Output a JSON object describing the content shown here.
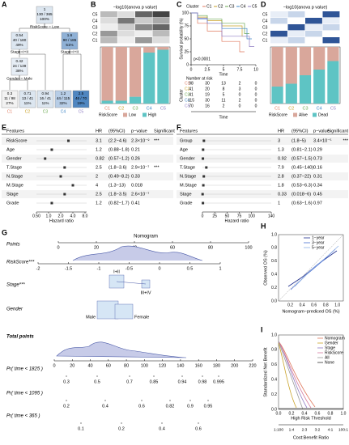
{
  "panel_labels": [
    "A",
    "B",
    "C",
    "D",
    "E",
    "F",
    "G",
    "H",
    "I"
  ],
  "tree": {
    "nodes": [
      {
        "lines": [
          "1",
          "130 / 365",
          "100%"
        ]
      },
      {
        "lines": [
          "0.54",
          "40 / 180",
          "49%"
        ]
      },
      {
        "lines": [
          "1.6",
          "90 / 185",
          "51%"
        ]
      },
      {
        "lines": [
          "0.42",
          "24 / 139",
          "38%"
        ]
      },
      {
        "lines": [
          "0.3",
          "11 / 98",
          "27%"
        ]
      },
      {
        "lines": [
          "0.71",
          "13 / 41",
          "11%"
        ]
      },
      {
        "lines": [
          "0.94",
          "16 / 41",
          "11%"
        ]
      },
      {
        "lines": [
          "1.2",
          "44 / 115",
          "32%"
        ]
      },
      {
        "lines": [
          "2.5",
          "46 / 70",
          "19%"
        ]
      }
    ],
    "splits": [
      "RiskScore = Low",
      "Stage=I+II",
      "Stage=I+II",
      "Gender = Male"
    ],
    "leaf_labels": [
      "C1",
      "C2",
      "C3",
      "C4",
      "C5"
    ]
  },
  "panel_b": {
    "title": "−log10(anova p value)",
    "rows": [
      "C5",
      "C4",
      "C3",
      "C2",
      "C1"
    ],
    "columns": [
      "C1",
      "C2",
      "C3",
      "C4",
      "C5"
    ],
    "legend_title": "RiskScore",
    "legend": [
      "Low",
      "High"
    ]
  },
  "panel_c": {
    "legend_title": "Cluster",
    "legend": [
      "C1",
      "C2",
      "C3",
      "C4",
      "C5"
    ],
    "y_label": "Survival probability (%)",
    "yticks": [
      "0",
      "25",
      "50",
      "75",
      "100"
    ],
    "xticks": [
      "0",
      "2.5",
      "5",
      "7.5",
      "10"
    ],
    "x_label": "Time",
    "p_value": "p<0.0001",
    "risk_title": "Number at risk",
    "risk_y_label": "Cluster",
    "risk_rows": [
      "C1",
      "C2",
      "C3",
      "C4",
      "C5"
    ],
    "risk_table": [
      [
        "98",
        "30",
        "13",
        "2",
        "0"
      ],
      [
        "41",
        "20",
        "8",
        "3",
        "0"
      ],
      [
        "41",
        "19",
        "5",
        "0",
        "0"
      ],
      [
        "115",
        "30",
        "11",
        "2",
        "0"
      ],
      [
        "70",
        "16",
        "2",
        "0",
        "0"
      ]
    ]
  },
  "panel_d": {
    "title": "−log10(anova p value)",
    "rows": [
      "C5",
      "C4",
      "C3",
      "C2",
      "C1"
    ],
    "columns": [
      "C1",
      "C2",
      "C3",
      "C4",
      "C5"
    ],
    "legend_title": "RiskScore",
    "legend": [
      "Alive",
      "Dead"
    ]
  },
  "panel_e": {
    "headers": [
      "Features",
      "HR",
      "(95%CI)",
      "p−value",
      "Significant"
    ],
    "rows": [
      [
        "RiskScore",
        "3.1",
        "(2.2−4.6)",
        "2.3×10⁻⁹",
        "***"
      ],
      [
        "Age",
        "1.2",
        "(0.88−1.8)",
        "0.21",
        ""
      ],
      [
        "Gender",
        "0.82",
        "(0.57−1.2)",
        "0.26",
        ""
      ],
      [
        "T.Stage",
        "2.5",
        "(1.8−3.6)",
        "2.9×10⁻⁷",
        "***"
      ],
      [
        "N.Stage",
        "2",
        "(0.49−8.2)",
        "0.33",
        ""
      ],
      [
        "M.Stage",
        "4",
        "(1.3−13)",
        "0.018",
        ""
      ],
      [
        "Stage",
        "2.5",
        "(1.8−3.5)",
        "2.6×10⁻⁷",
        ""
      ],
      [
        "Grade",
        "1.2",
        "(0.82−1.7)",
        "0.41",
        ""
      ]
    ],
    "xticks": [
      "0.50",
      "1.0",
      "2.0",
      "4.0",
      "8.0"
    ],
    "x_label": "Hazard ratio"
  },
  "panel_f": {
    "headers": [
      "Features",
      "HR",
      "(95%CI)",
      "p−value",
      "Significant"
    ],
    "rows": [
      [
        "Group",
        "3",
        "(1.8−5)",
        "3.4×10⁻⁵",
        "***"
      ],
      [
        "Age",
        "1.3",
        "(0.81−2.1)",
        "0.29",
        ""
      ],
      [
        "Gender",
        "0.92",
        "(0.57−1.5)",
        "0.73",
        ""
      ],
      [
        "T.Stage",
        "7.9",
        "(0.45−140)",
        "0.16",
        ""
      ],
      [
        "N.Stage",
        "2.8",
        "(0.37−22)",
        "0.31",
        ""
      ],
      [
        "M.Stage",
        "1.8",
        "(0.53−6.3)",
        "0.34",
        ""
      ],
      [
        "Stage",
        "0.33",
        "(0.018−6)",
        "0.45",
        ""
      ],
      [
        "Grade",
        "1",
        "(0.63−1.6)",
        "0.97",
        ""
      ]
    ],
    "xticks": [
      "0",
      "25",
      "50",
      "75",
      "100",
      "140"
    ],
    "x_label": "Hazard ratio"
  },
  "panel_g": {
    "title": "Nomogram",
    "row_labels": [
      "Points",
      "RiskScore***",
      "Stage***",
      "Gender",
      "Total points",
      "Pr( time < 1825 )",
      "Pr( time < 1095 )",
      "Pr( time < 365 )"
    ],
    "points_ticks": [
      "0",
      "20",
      "40",
      "60",
      "80",
      "100"
    ],
    "riskscore_ticks": [
      "-2",
      "-1.5",
      "-1",
      "-0.5",
      "0",
      "0.5",
      "1"
    ],
    "stage_levels": [
      "I+II",
      "III+IV"
    ],
    "gender_levels": [
      "Male",
      "Female"
    ],
    "total_ticks": [
      "0",
      "20",
      "40",
      "60",
      "80",
      "100",
      "120",
      "140",
      "160",
      "180",
      "200",
      "220"
    ],
    "pr1825_ticks": [
      "0.3",
      "0.5",
      "0.7",
      "0.85",
      "0.94",
      "0.98",
      "0.995"
    ],
    "pr1095_ticks": [
      "0.2",
      "0.4",
      "0.6",
      "0.82",
      "0.9",
      "0.95"
    ],
    "pr365_ticks": [
      "0.1",
      "0.2",
      "0.4",
      "0.6"
    ]
  },
  "panel_h": {
    "legend": [
      "1−year",
      "3−year",
      "5−year"
    ],
    "y_label": "Observed OS (%)",
    "x_label": "Nomogram−prediced OS (%)",
    "xticks": [
      "0.2",
      "0.4",
      "0.6",
      "0.8",
      "1.0"
    ],
    "yticks": [
      "0.0",
      "0.2",
      "0.4",
      "0.6",
      "0.8",
      "1.0"
    ]
  },
  "panel_i": {
    "legend": [
      "Nomogram",
      "Gender",
      "Stage",
      "RiskScore",
      "All",
      "None"
    ],
    "y_label": "Standardized Net Benefit",
    "x_label": "High Risk Threshold",
    "x2_label": "Cost:Benefit Ratio",
    "xticks": [
      "0.0",
      "0.2",
      "0.4",
      "0.6",
      "0.8",
      "1.0"
    ],
    "yticks": [
      "0.0",
      "0.2",
      "0.4",
      "0.6",
      "0.8",
      "1.0"
    ],
    "cost_ticks": [
      "1:100",
      "1:4",
      "2:3",
      "3:2",
      "4:1",
      "100:1"
    ]
  }
}
